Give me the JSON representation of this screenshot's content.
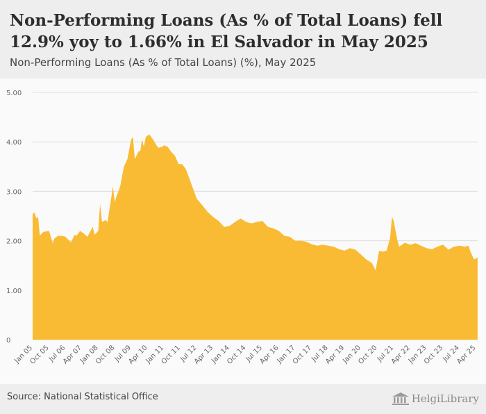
{
  "header": {
    "title": "Non-Performing Loans (As % of Total Loans) fell 12.9% yoy to 1.66% in El Salvador in May 2025",
    "subtitle": "Non-Performing Loans (As % of Total Loans) (%), May 2025"
  },
  "footer": {
    "source": "Source: National Statistical Office",
    "logo_text": "HelgiLibrary"
  },
  "colors": {
    "area_fill": "#f9bb33",
    "grid": "#dddddd",
    "header_bg": "#eeeeee"
  },
  "chart_data": {
    "type": "area",
    "title": "Non-Performing Loans (As % of Total Loans) (%), May 2025",
    "xlabel": "",
    "ylabel": "",
    "ylim": [
      0,
      5
    ],
    "yticks": [
      {
        "value": 0,
        "label": "0"
      },
      {
        "value": 1,
        "label": "1.00"
      },
      {
        "value": 2,
        "label": "2.00"
      },
      {
        "value": 3,
        "label": "3.00"
      },
      {
        "value": 4,
        "label": "4.00"
      },
      {
        "value": 5,
        "label": "5.00"
      }
    ],
    "xlim": [
      2005.0,
      2025.3333
    ],
    "xticks": [
      {
        "value": 2005.0,
        "label": "Jan 05"
      },
      {
        "value": 2005.75,
        "label": "Oct 05"
      },
      {
        "value": 2006.5,
        "label": "Jul 06"
      },
      {
        "value": 2007.25,
        "label": "Apr 07"
      },
      {
        "value": 2008.0,
        "label": "Jan 08"
      },
      {
        "value": 2008.75,
        "label": "Oct 08"
      },
      {
        "value": 2009.5,
        "label": "Jul 09"
      },
      {
        "value": 2010.25,
        "label": "Apr 10"
      },
      {
        "value": 2011.0,
        "label": "Jan 11"
      },
      {
        "value": 2011.75,
        "label": "Oct 11"
      },
      {
        "value": 2012.5,
        "label": "Jul 12"
      },
      {
        "value": 2013.25,
        "label": "Apr 13"
      },
      {
        "value": 2014.0,
        "label": "Jan 14"
      },
      {
        "value": 2014.75,
        "label": "Oct 14"
      },
      {
        "value": 2015.5,
        "label": "Jul 15"
      },
      {
        "value": 2016.25,
        "label": "Apr 16"
      },
      {
        "value": 2017.0,
        "label": "Jan 17"
      },
      {
        "value": 2017.75,
        "label": "Oct 17"
      },
      {
        "value": 2018.5,
        "label": "Jul 18"
      },
      {
        "value": 2019.25,
        "label": "Apr 19"
      },
      {
        "value": 2020.0,
        "label": "Jan 20"
      },
      {
        "value": 2020.75,
        "label": "Oct 20"
      },
      {
        "value": 2021.5,
        "label": "Jul 21"
      },
      {
        "value": 2022.25,
        "label": "Apr 22"
      },
      {
        "value": 2023.0,
        "label": "Jan 23"
      },
      {
        "value": 2023.75,
        "label": "Oct 23"
      },
      {
        "value": 2024.5,
        "label": "Jul 24"
      },
      {
        "value": 2025.25,
        "label": "Apr 25"
      }
    ],
    "series": [
      {
        "name": "Non-Performing Loans (As % of Total Loans)",
        "x": [
          2005.0,
          2005.08,
          2005.17,
          2005.25,
          2005.33,
          2005.42,
          2005.5,
          2005.75,
          2005.92,
          2006.0,
          2006.17,
          2006.33,
          2006.5,
          2006.75,
          2006.92,
          2007.0,
          2007.17,
          2007.33,
          2007.5,
          2007.75,
          2007.83,
          2008.0,
          2008.08,
          2008.17,
          2008.33,
          2008.42,
          2008.5,
          2008.67,
          2008.75,
          2008.83,
          2008.92,
          2009.0,
          2009.17,
          2009.33,
          2009.5,
          2009.58,
          2009.67,
          2009.83,
          2009.92,
          2010.0,
          2010.08,
          2010.17,
          2010.33,
          2010.5,
          2010.67,
          2010.75,
          2010.92,
          2011.0,
          2011.17,
          2011.33,
          2011.5,
          2011.67,
          2011.83,
          2012.0,
          2012.25,
          2012.5,
          2012.75,
          2013.0,
          2013.25,
          2013.5,
          2013.75,
          2014.0,
          2014.25,
          2014.5,
          2014.75,
          2015.0,
          2015.25,
          2015.5,
          2015.75,
          2016.0,
          2016.25,
          2016.5,
          2016.75,
          2017.0,
          2017.25,
          2017.5,
          2017.75,
          2018.0,
          2018.25,
          2018.5,
          2018.75,
          2019.0,
          2019.25,
          2019.5,
          2019.75,
          2020.0,
          2020.25,
          2020.5,
          2020.67,
          2020.83,
          2021.0,
          2021.17,
          2021.33,
          2021.42,
          2021.5,
          2021.58,
          2021.67,
          2021.75,
          2022.0,
          2022.25,
          2022.5,
          2022.75,
          2023.0,
          2023.25,
          2023.5,
          2023.75,
          2024.0,
          2024.25,
          2024.5,
          2024.75,
          2024.92,
          2025.0,
          2025.17,
          2025.33
        ],
        "values": [
          2.54,
          2.57,
          2.45,
          2.48,
          2.1,
          2.15,
          2.18,
          2.2,
          1.95,
          2.05,
          2.1,
          2.1,
          2.08,
          1.97,
          2.12,
          2.1,
          2.2,
          2.15,
          2.08,
          2.28,
          2.12,
          2.2,
          2.75,
          2.38,
          2.42,
          2.38,
          2.6,
          3.1,
          2.78,
          2.9,
          3.0,
          3.1,
          3.5,
          3.65,
          4.05,
          4.1,
          3.65,
          3.8,
          3.82,
          4.05,
          3.9,
          4.1,
          4.15,
          4.05,
          3.92,
          3.88,
          3.9,
          3.93,
          3.9,
          3.8,
          3.72,
          3.55,
          3.55,
          3.45,
          3.15,
          2.85,
          2.72,
          2.58,
          2.48,
          2.4,
          2.28,
          2.3,
          2.38,
          2.45,
          2.38,
          2.35,
          2.38,
          2.4,
          2.28,
          2.25,
          2.2,
          2.1,
          2.08,
          2.0,
          2.0,
          1.98,
          1.93,
          1.9,
          1.92,
          1.9,
          1.88,
          1.83,
          1.8,
          1.85,
          1.82,
          1.72,
          1.62,
          1.55,
          1.4,
          1.8,
          1.78,
          1.8,
          2.05,
          2.48,
          2.4,
          2.2,
          2.0,
          1.88,
          1.96,
          1.92,
          1.95,
          1.9,
          1.85,
          1.83,
          1.88,
          1.92,
          1.82,
          1.88,
          1.9,
          1.88,
          1.9,
          1.78,
          1.62,
          1.66
        ]
      }
    ]
  }
}
